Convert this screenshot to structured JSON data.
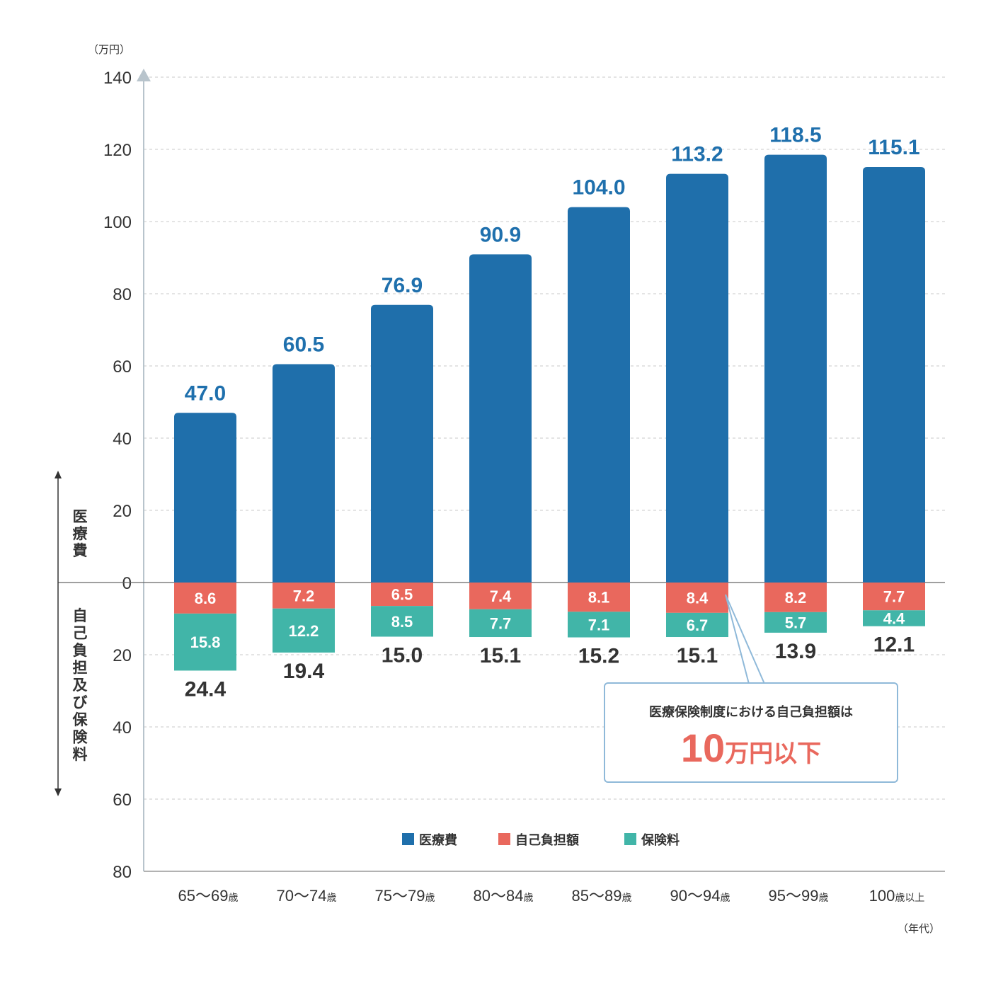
{
  "chart_data": {
    "type": "bar",
    "categories": [
      {
        "num": "65〜69",
        "suffix": "歳"
      },
      {
        "num": "70〜74",
        "suffix": "歳"
      },
      {
        "num": "75〜79",
        "suffix": "歳"
      },
      {
        "num": "80〜84",
        "suffix": "歳"
      },
      {
        "num": "85〜89",
        "suffix": "歳"
      },
      {
        "num": "90〜94",
        "suffix": "歳"
      },
      {
        "num": "95〜99",
        "suffix": "歳"
      },
      {
        "num": "100",
        "suffix": "歳以上"
      }
    ],
    "series": [
      {
        "name": "医療費",
        "color": "#1f6fab",
        "direction": "up",
        "values": [
          47.0,
          60.5,
          76.9,
          90.9,
          104.0,
          113.2,
          118.5,
          115.1
        ],
        "labels": [
          "47.0",
          "60.5",
          "76.9",
          "90.9",
          "104.0",
          "113.2",
          "118.5",
          "115.1"
        ]
      },
      {
        "name": "自己負担額",
        "color": "#e9685d",
        "direction": "down",
        "values": [
          8.6,
          7.2,
          6.5,
          7.4,
          8.1,
          8.4,
          8.2,
          7.7
        ],
        "labels": [
          "8.6",
          "7.2",
          "6.5",
          "7.4",
          "8.1",
          "8.4",
          "8.2",
          "7.7"
        ]
      },
      {
        "name": "保険料",
        "color": "#41b5a8",
        "direction": "down",
        "values": [
          15.8,
          12.2,
          8.5,
          7.7,
          7.1,
          6.7,
          5.7,
          4.4
        ],
        "labels": [
          "15.8",
          "12.2",
          "8.5",
          "7.7",
          "7.1",
          "6.7",
          "5.7",
          "4.4"
        ]
      }
    ],
    "totals": [
      "24.4",
      "19.4",
      "15.0",
      "15.1",
      "15.2",
      "15.1",
      "13.9",
      "12.1"
    ],
    "y_unit": "（万円）",
    "x_unit": "（年代）",
    "ylim_up": [
      0,
      140
    ],
    "ylim_down": [
      0,
      80
    ],
    "yticks_up": [
      "0",
      "20",
      "40",
      "60",
      "80",
      "100",
      "120",
      "140"
    ],
    "yticks_down": [
      "20",
      "40",
      "60",
      "80"
    ],
    "side_label_up": "医療費",
    "side_label_down": "自己負担及び保険料",
    "legend_position": "bottom-center",
    "grid": true
  },
  "callout": {
    "line1": "医療保険制度における自己負担額は",
    "big": "10",
    "small": "万円以下"
  }
}
